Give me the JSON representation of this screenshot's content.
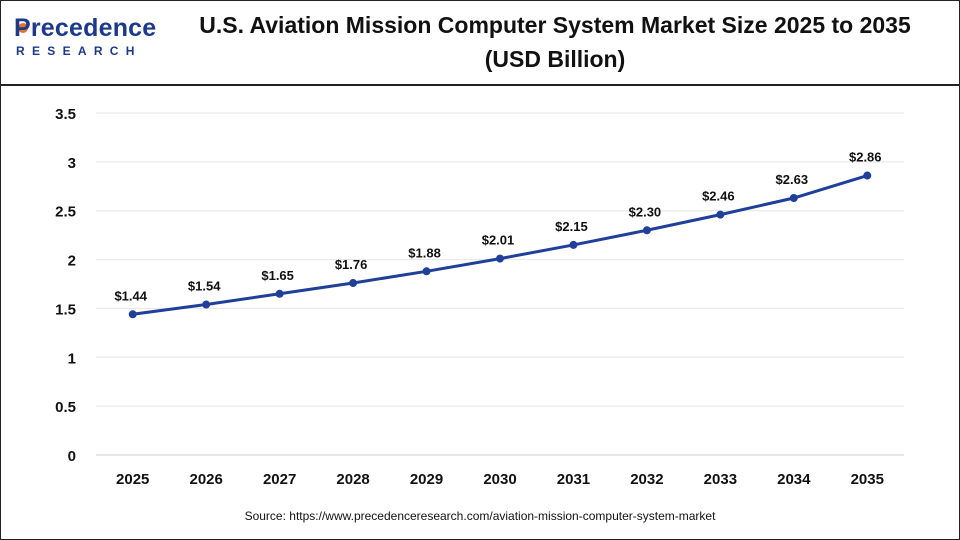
{
  "logo": {
    "brand": "Precedence",
    "sub": "RESEARCH"
  },
  "title": "U.S. Aviation Mission Computer System Market Size 2025 to 2035 (USD Billion)",
  "source": "Source: https://www.precedenceresearch.com/aviation-mission-computer-system-market",
  "chart_data": {
    "type": "line",
    "title": "U.S. Aviation Mission Computer System Market Size 2025 to 2035 (USD Billion)",
    "xlabel": "",
    "ylabel": "",
    "categories": [
      "2025",
      "2026",
      "2027",
      "2028",
      "2029",
      "2030",
      "2031",
      "2032",
      "2033",
      "2034",
      "2035"
    ],
    "series": [
      {
        "values": [
          1.44,
          1.54,
          1.65,
          1.76,
          1.88,
          2.01,
          2.15,
          2.3,
          2.46,
          2.63,
          2.86
        ],
        "labels": [
          "$1.44",
          "$1.54",
          "$1.65",
          "$1.76",
          "$1.88",
          "$2.01",
          "$2.15",
          "$2.30",
          "$2.46",
          "$2.63",
          "$2.86"
        ]
      }
    ],
    "ylim": [
      0,
      3.5
    ],
    "yticks": [
      "0",
      "0.5",
      "1",
      "1.5",
      "2",
      "2.5",
      "3",
      "3.5"
    ],
    "grid": true,
    "line_color": "#1f3f99"
  }
}
